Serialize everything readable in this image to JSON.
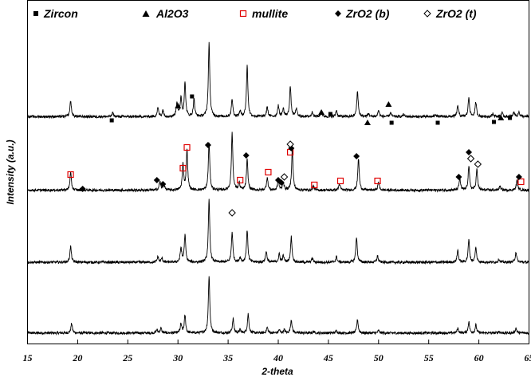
{
  "chart_data": {
    "type": "line",
    "title": "",
    "xlabel": "2-theta",
    "ylabel": "Intensity (a.u.)",
    "xlim": [
      15,
      65
    ],
    "x_ticks": [
      "15",
      "20",
      "25",
      "30",
      "35",
      "40",
      "45",
      "50",
      "55",
      "60",
      "65"
    ],
    "grid": false,
    "legend_position": "top",
    "legend": [
      {
        "label": "Zircon",
        "symbol": "filled-square",
        "color": "#000000"
      },
      {
        "label": "Al2O3",
        "symbol": "filled-triangle",
        "color": "#000000"
      },
      {
        "label": "mullite",
        "symbol": "open-square",
        "color": "#e00000"
      },
      {
        "label": "ZrO2 (b)",
        "symbol": "filled-diamond",
        "color": "#000000"
      },
      {
        "label": "ZrO2 (t)",
        "symbol": "open-diamond",
        "color": "#000000"
      }
    ],
    "series": [
      {
        "baseline": 1.0,
        "peaks": [
          [
            19.4,
            12
          ],
          [
            27.9,
            4
          ],
          [
            28.3,
            6
          ],
          [
            30.3,
            11
          ],
          [
            30.7,
            22
          ],
          [
            33.1,
            72
          ],
          [
            35.5,
            18
          ],
          [
            36.2,
            4
          ],
          [
            37.0,
            24
          ],
          [
            38.9,
            7
          ],
          [
            40.1,
            4
          ],
          [
            40.6,
            4
          ],
          [
            41.3,
            17
          ],
          [
            43.5,
            2
          ],
          [
            45.8,
            3
          ],
          [
            47.9,
            17
          ],
          [
            50.0,
            3
          ],
          [
            57.9,
            6
          ],
          [
            59.0,
            14
          ],
          [
            59.7,
            10
          ],
          [
            62.0,
            2
          ],
          [
            63.7,
            6
          ]
        ]
      },
      {
        "baseline": 2.02,
        "peaks": [
          [
            19.3,
            20
          ],
          [
            28.0,
            7
          ],
          [
            28.4,
            5
          ],
          [
            30.3,
            18
          ],
          [
            30.7,
            34
          ],
          [
            33.1,
            78
          ],
          [
            35.4,
            38
          ],
          [
            36.2,
            6
          ],
          [
            36.9,
            40
          ],
          [
            38.8,
            14
          ],
          [
            40.1,
            10
          ],
          [
            40.5,
            8
          ],
          [
            41.3,
            32
          ],
          [
            43.4,
            5
          ],
          [
            45.8,
            7
          ],
          [
            47.8,
            32
          ],
          [
            49.9,
            8
          ],
          [
            57.9,
            15
          ],
          [
            59.0,
            28
          ],
          [
            59.7,
            18
          ],
          [
            62.0,
            4
          ],
          [
            63.7,
            13
          ]
        ]
      },
      {
        "baseline": 3.06,
        "peaks": [
          [
            19.3,
            22
          ],
          [
            28.2,
            11
          ],
          [
            28.6,
            8
          ],
          [
            30.5,
            32
          ],
          [
            30.9,
            50
          ],
          [
            33.1,
            60
          ],
          [
            35.4,
            72
          ],
          [
            36.1,
            9
          ],
          [
            36.9,
            38
          ],
          [
            38.9,
            16
          ],
          [
            40.0,
            12
          ],
          [
            40.5,
            10
          ],
          [
            41.4,
            50
          ],
          [
            43.5,
            5
          ],
          [
            46.1,
            8
          ],
          [
            48.0,
            40
          ],
          [
            50.0,
            10
          ],
          [
            58.1,
            15
          ],
          [
            59.0,
            30
          ],
          [
            59.8,
            26
          ],
          [
            62.1,
            5
          ],
          [
            63.8,
            12
          ]
        ]
      },
      {
        "baseline": 4.12,
        "peaks": [
          [
            19.3,
            20
          ],
          [
            23.5,
            5
          ],
          [
            28.0,
            11
          ],
          [
            28.5,
            8
          ],
          [
            29.9,
            18
          ],
          [
            30.3,
            24
          ],
          [
            30.7,
            42
          ],
          [
            31.6,
            22
          ],
          [
            33.1,
            92
          ],
          [
            35.4,
            22
          ],
          [
            36.2,
            7
          ],
          [
            36.9,
            64
          ],
          [
            38.9,
            12
          ],
          [
            40.0,
            14
          ],
          [
            40.5,
            10
          ],
          [
            41.2,
            38
          ],
          [
            41.8,
            10
          ],
          [
            43.4,
            6
          ],
          [
            44.3,
            8
          ],
          [
            45.8,
            8
          ],
          [
            47.9,
            32
          ],
          [
            49.0,
            4
          ],
          [
            50.0,
            8
          ],
          [
            51.2,
            5
          ],
          [
            52.5,
            3
          ],
          [
            55.7,
            3
          ],
          [
            57.9,
            14
          ],
          [
            59.0,
            24
          ],
          [
            59.7,
            18
          ],
          [
            61.4,
            4
          ],
          [
            62.3,
            5
          ],
          [
            63.5,
            6
          ],
          [
            64.0,
            6
          ]
        ]
      }
    ],
    "markers": [
      {
        "phase": "Zircon",
        "x": 23.4,
        "trace": 4,
        "h": 8
      },
      {
        "phase": "Zircon",
        "x": 31.4,
        "trace": 4,
        "h": 38
      },
      {
        "phase": "Zircon",
        "x": 45.2,
        "trace": 4,
        "h": 16
      },
      {
        "phase": "Zircon",
        "x": 51.3,
        "trace": 4,
        "h": 5
      },
      {
        "phase": "Zircon",
        "x": 55.9,
        "trace": 4,
        "h": 5
      },
      {
        "phase": "Zircon",
        "x": 61.5,
        "trace": 4,
        "h": 6
      },
      {
        "phase": "Zircon",
        "x": 63.1,
        "trace": 4,
        "h": 11
      },
      {
        "phase": "Al2O3",
        "x": 30.0,
        "trace": 4,
        "h": 26
      },
      {
        "phase": "Al2O3",
        "x": 44.3,
        "trace": 4,
        "h": 18
      },
      {
        "phase": "Al2O3",
        "x": 48.9,
        "trace": 4,
        "h": 5
      },
      {
        "phase": "Al2O3",
        "x": 51.0,
        "trace": 4,
        "h": 28
      },
      {
        "phase": "Al2O3",
        "x": 62.2,
        "trace": 4,
        "h": 11
      },
      {
        "phase": "mullite",
        "x": 19.3,
        "trace": 3,
        "h": 27
      },
      {
        "phase": "mullite",
        "x": 30.5,
        "trace": 3,
        "h": 35
      },
      {
        "phase": "mullite",
        "x": 30.9,
        "trace": 3,
        "h": 61
      },
      {
        "phase": "mullite",
        "x": 36.2,
        "trace": 3,
        "h": 20
      },
      {
        "phase": "mullite",
        "x": 39.0,
        "trace": 3,
        "h": 30
      },
      {
        "phase": "mullite",
        "x": 41.2,
        "trace": 3,
        "h": 55
      },
      {
        "phase": "mullite",
        "x": 43.6,
        "trace": 3,
        "h": 14
      },
      {
        "phase": "mullite",
        "x": 46.2,
        "trace": 3,
        "h": 19
      },
      {
        "phase": "mullite",
        "x": 49.9,
        "trace": 3,
        "h": 19
      },
      {
        "phase": "mullite",
        "x": 64.2,
        "trace": 3,
        "h": 18
      },
      {
        "phase": "ZrO2 (b)",
        "x": 20.5,
        "trace": 3,
        "h": 9
      },
      {
        "phase": "ZrO2 (b)",
        "x": 27.9,
        "trace": 3,
        "h": 20
      },
      {
        "phase": "ZrO2 (b)",
        "x": 28.5,
        "trace": 3,
        "h": 15
      },
      {
        "phase": "ZrO2 (b)",
        "x": 33.0,
        "trace": 3,
        "h": 64
      },
      {
        "phase": "ZrO2 (b)",
        "x": 36.8,
        "trace": 3,
        "h": 51
      },
      {
        "phase": "ZrO2 (b)",
        "x": 40.0,
        "trace": 3,
        "h": 20
      },
      {
        "phase": "ZrO2 (b)",
        "x": 40.3,
        "trace": 3,
        "h": 17
      },
      {
        "phase": "ZrO2 (b)",
        "x": 41.3,
        "trace": 3,
        "h": 60
      },
      {
        "phase": "ZrO2 (b)",
        "x": 47.8,
        "trace": 3,
        "h": 50
      },
      {
        "phase": "ZrO2 (b)",
        "x": 58.0,
        "trace": 3,
        "h": 24
      },
      {
        "phase": "ZrO2 (b)",
        "x": 59.0,
        "trace": 3,
        "h": 55
      },
      {
        "phase": "ZrO2 (b)",
        "x": 64.0,
        "trace": 3,
        "h": 24
      },
      {
        "phase": "ZrO2 (t)",
        "x": 35.4,
        "trace": 2,
        "h": 66
      },
      {
        "phase": "ZrO2 (t)",
        "x": 40.6,
        "trace": 3,
        "h": 24
      },
      {
        "phase": "ZrO2 (t)",
        "x": 41.2,
        "trace": 3,
        "h": 65
      },
      {
        "phase": "ZrO2 (t)",
        "x": 59.2,
        "trace": 3,
        "h": 47
      },
      {
        "phase": "ZrO2 (t)",
        "x": 59.9,
        "trace": 3,
        "h": 40
      }
    ]
  }
}
